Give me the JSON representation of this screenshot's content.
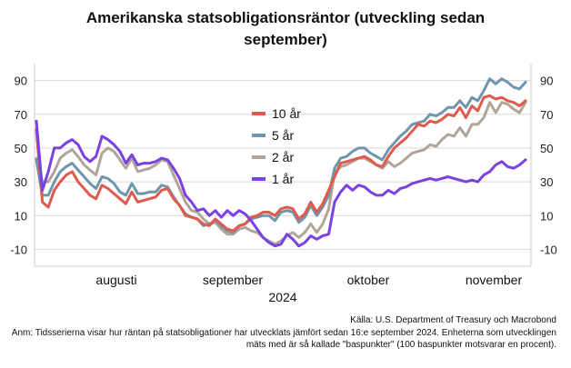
{
  "chart_data": {
    "type": "line",
    "title": "Amerikanska statsobligationsräntor (utveckling sedan september)",
    "title_lines": [
      "Amerikanska statsobligationsräntor (utveckling sedan",
      "september)"
    ],
    "x_category_labels": [
      "augusti",
      "september",
      "oktober",
      "november"
    ],
    "year_label": "2024",
    "ylim": [
      -20,
      100
    ],
    "yticks": [
      90,
      70,
      50,
      30,
      10,
      -10
    ],
    "grid": "horizontal",
    "legend_position": "center",
    "series": [
      {
        "name": "10 år",
        "color": "#e05a4e",
        "values": [
          61,
          18,
          15,
          25,
          30,
          34,
          36,
          30,
          26,
          22,
          20,
          28,
          26,
          23,
          20,
          17,
          24,
          18,
          19,
          20,
          21,
          25,
          26,
          20,
          16,
          10,
          9,
          8,
          5,
          4,
          8,
          5,
          2,
          1,
          4,
          5,
          9,
          10,
          12,
          12,
          10,
          14,
          15,
          14,
          8,
          11,
          18,
          12,
          17,
          25,
          33,
          41,
          42,
          43,
          44,
          45,
          43,
          40,
          39,
          45,
          50,
          53,
          56,
          60,
          64,
          63,
          66,
          65,
          67,
          70,
          69,
          74,
          68,
          75,
          72,
          80,
          81,
          79,
          80,
          78,
          77,
          75,
          78
        ]
      },
      {
        "name": "5 år",
        "color": "#6e96ad",
        "values": [
          43,
          22,
          22,
          30,
          36,
          39,
          41,
          37,
          33,
          29,
          26,
          33,
          32,
          29,
          24,
          22,
          29,
          23,
          23,
          24,
          24,
          28,
          27,
          21,
          16,
          11,
          9,
          8,
          4,
          5,
          7,
          4,
          1,
          0,
          4,
          5,
          8,
          9,
          10,
          10,
          7,
          12,
          13,
          12,
          6,
          9,
          16,
          10,
          15,
          22,
          38,
          44,
          45,
          48,
          50,
          50,
          47,
          45,
          43,
          49,
          53,
          57,
          60,
          64,
          65,
          66,
          70,
          69,
          71,
          74,
          74,
          78,
          74,
          80,
          78,
          84,
          91,
          88,
          91,
          89,
          86,
          85,
          89
        ]
      },
      {
        "name": "2 år",
        "color": "#b0a598",
        "values": [
          44,
          30,
          30,
          36,
          44,
          47,
          49,
          45,
          40,
          37,
          34,
          47,
          50,
          48,
          43,
          38,
          44,
          36,
          37,
          38,
          40,
          43,
          42,
          34,
          26,
          18,
          13,
          12,
          8,
          5,
          6,
          2,
          -1,
          -1,
          2,
          3,
          1,
          0,
          -3,
          -5,
          -7,
          -5,
          -2,
          0,
          -3,
          0,
          5,
          0,
          5,
          14,
          35,
          39,
          40,
          42,
          44,
          44,
          42,
          40,
          38,
          42,
          39,
          41,
          44,
          47,
          48,
          49,
          52,
          51,
          55,
          58,
          57,
          62,
          57,
          64,
          64,
          68,
          77,
          71,
          77,
          76,
          73,
          71,
          77
        ]
      },
      {
        "name": "1 år",
        "color": "#7a42e0",
        "values": [
          66,
          25,
          36,
          50,
          50,
          53,
          55,
          52,
          45,
          42,
          45,
          57,
          55,
          52,
          48,
          41,
          46,
          40,
          41,
          41,
          42,
          44,
          43,
          38,
          32,
          22,
          18,
          13,
          14,
          10,
          13,
          9,
          13,
          10,
          13,
          11,
          7,
          2,
          -3,
          -6,
          -8,
          -7,
          -1,
          -4,
          -8,
          -6,
          -2,
          -4,
          -2,
          -1,
          18,
          24,
          28,
          25,
          28,
          27,
          24,
          22,
          22,
          25,
          23,
          26,
          27,
          29,
          30,
          31,
          32,
          31,
          32,
          33,
          32,
          31,
          30,
          31,
          30,
          34,
          36,
          40,
          42,
          39,
          38,
          40,
          43
        ]
      }
    ]
  },
  "footer": {
    "source": "Källa: U.S. Department of Treasury och Macrobond",
    "note": "Anm: Tidsserierna visar hur räntan på statsobligationer har utvecklats jämfört sedan 16:e september 2024. Enheterna som utvecklingen mäts med är så kallade \"baspunkter\" (100 baspunkter motsvarar en procent)."
  }
}
